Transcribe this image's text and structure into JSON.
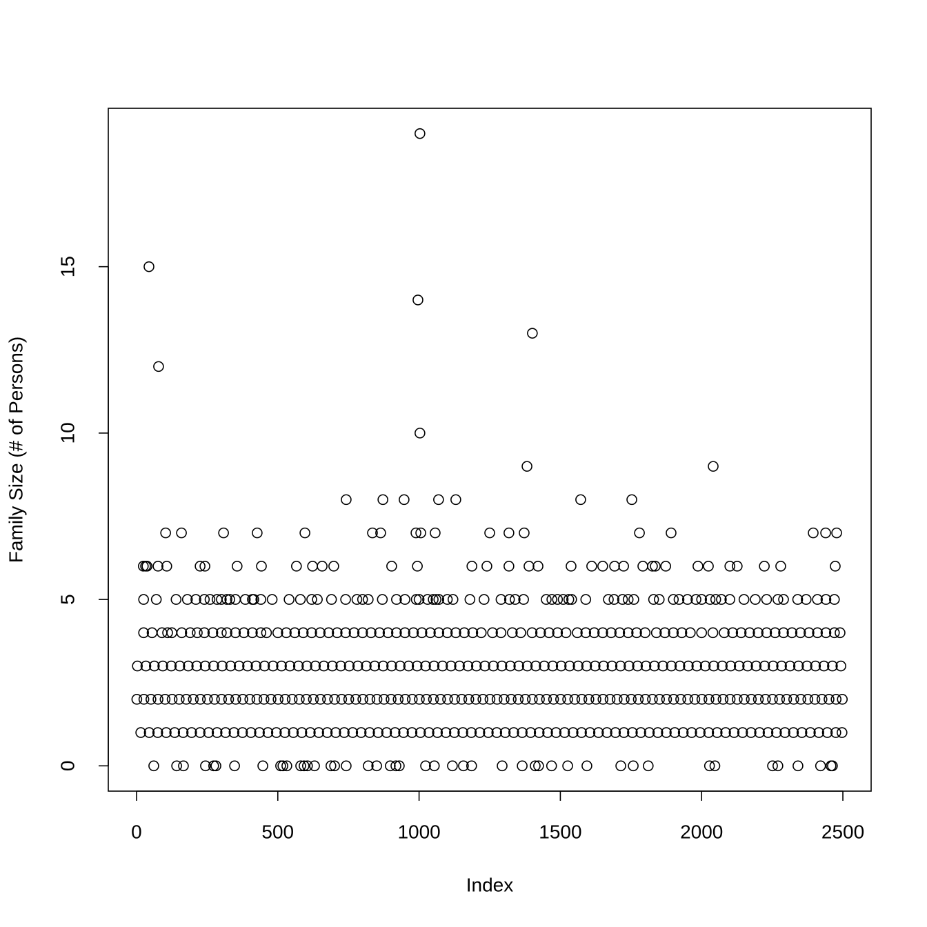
{
  "chart_data": {
    "type": "scatter",
    "x_label": "Index",
    "y_label": "Family Size (# of Persons)",
    "xlim": [
      -100,
      2600
    ],
    "ylim": [
      -0.76,
      19.76
    ],
    "xticks": [
      0,
      500,
      1000,
      1500,
      2000,
      2500
    ],
    "yticks": [
      0,
      5,
      10,
      15
    ],
    "color": "#000000",
    "groups": [
      {
        "y": 0,
        "x": [
          61,
          142,
          166,
          244,
          273,
          281,
          347,
          447,
          510,
          518,
          532,
          581,
          593,
          605,
          630,
          688,
          701,
          742,
          820,
          850,
          898,
          918,
          930,
          1023,
          1054,
          1118,
          1157,
          1186,
          1294,
          1365,
          1411,
          1423,
          1469,
          1526,
          1594,
          1714,
          1758,
          1811,
          2028,
          2047,
          2251,
          2270,
          2341,
          2421,
          2458,
          2463
        ]
      },
      {
        "y": 1,
        "x": [
          15,
          45,
          75,
          105,
          135,
          165,
          195,
          225,
          255,
          285,
          315,
          345,
          375,
          405,
          435,
          465,
          495,
          525,
          555,
          585,
          615,
          645,
          675,
          705,
          735,
          765,
          795,
          825,
          855,
          885,
          915,
          945,
          975,
          1005,
          1035,
          1065,
          1095,
          1125,
          1155,
          1185,
          1215,
          1245,
          1275,
          1305,
          1335,
          1365,
          1395,
          1425,
          1455,
          1485,
          1515,
          1545,
          1575,
          1605,
          1635,
          1665,
          1695,
          1725,
          1755,
          1785,
          1815,
          1845,
          1875,
          1905,
          1935,
          1965,
          1995,
          2025,
          2055,
          2085,
          2115,
          2145,
          2175,
          2205,
          2235,
          2265,
          2295,
          2325,
          2355,
          2385,
          2415,
          2445,
          2475,
          2497
        ]
      },
      {
        "y": 2,
        "x": [
          1,
          26,
          51,
          76,
          101,
          126,
          151,
          176,
          201,
          226,
          251,
          276,
          301,
          326,
          351,
          376,
          401,
          426,
          451,
          476,
          501,
          526,
          551,
          576,
          601,
          626,
          651,
          676,
          701,
          726,
          751,
          776,
          801,
          826,
          851,
          876,
          901,
          926,
          951,
          976,
          1001,
          1026,
          1051,
          1076,
          1101,
          1126,
          1151,
          1176,
          1201,
          1226,
          1251,
          1276,
          1301,
          1326,
          1351,
          1376,
          1401,
          1426,
          1451,
          1476,
          1501,
          1526,
          1551,
          1576,
          1601,
          1626,
          1651,
          1676,
          1701,
          1726,
          1751,
          1776,
          1801,
          1826,
          1851,
          1876,
          1901,
          1926,
          1951,
          1976,
          2001,
          2026,
          2051,
          2076,
          2101,
          2126,
          2151,
          2176,
          2201,
          2226,
          2251,
          2276,
          2301,
          2326,
          2351,
          2376,
          2401,
          2426,
          2451,
          2476,
          2498
        ]
      },
      {
        "y": 3,
        "x": [
          3,
          33,
          63,
          93,
          123,
          153,
          183,
          213,
          243,
          273,
          303,
          333,
          363,
          393,
          423,
          453,
          483,
          513,
          543,
          573,
          603,
          633,
          663,
          693,
          723,
          753,
          783,
          813,
          843,
          873,
          903,
          933,
          963,
          993,
          1023,
          1053,
          1083,
          1113,
          1143,
          1173,
          1203,
          1233,
          1263,
          1293,
          1323,
          1353,
          1383,
          1413,
          1443,
          1473,
          1503,
          1533,
          1563,
          1593,
          1623,
          1653,
          1683,
          1713,
          1743,
          1773,
          1803,
          1833,
          1863,
          1893,
          1923,
          1953,
          1983,
          2013,
          2043,
          2073,
          2103,
          2133,
          2163,
          2193,
          2223,
          2253,
          2283,
          2313,
          2343,
          2373,
          2403,
          2433,
          2463,
          2493
        ]
      },
      {
        "y": 4,
        "x": [
          25,
          55,
          90,
          110,
          125,
          160,
          190,
          215,
          240,
          270,
          300,
          320,
          350,
          380,
          410,
          440,
          460,
          500,
          530,
          560,
          590,
          620,
          650,
          680,
          710,
          740,
          770,
          800,
          830,
          860,
          890,
          920,
          950,
          980,
          1010,
          1040,
          1070,
          1100,
          1130,
          1160,
          1190,
          1220,
          1260,
          1290,
          1330,
          1360,
          1400,
          1430,
          1460,
          1490,
          1520,
          1560,
          1590,
          1620,
          1650,
          1680,
          1710,
          1740,
          1770,
          1800,
          1840,
          1870,
          1900,
          1930,
          1960,
          2000,
          2040,
          2080,
          2110,
          2140,
          2170,
          2200,
          2230,
          2260,
          2290,
          2320,
          2350,
          2380,
          2410,
          2440,
          2470,
          2490
        ]
      },
      {
        "y": 5,
        "x": [
          25,
          70,
          140,
          180,
          210,
          240,
          260,
          285,
          300,
          320,
          330,
          350,
          385,
          410,
          415,
          440,
          480,
          540,
          580,
          620,
          640,
          690,
          740,
          780,
          800,
          820,
          870,
          920,
          950,
          990,
          1000,
          1030,
          1050,
          1060,
          1070,
          1100,
          1120,
          1180,
          1230,
          1290,
          1320,
          1340,
          1370,
          1450,
          1470,
          1490,
          1510,
          1530,
          1540,
          1590,
          1670,
          1690,
          1720,
          1740,
          1760,
          1830,
          1850,
          1900,
          1920,
          1950,
          1980,
          2000,
          2030,
          2050,
          2070,
          2100,
          2150,
          2190,
          2230,
          2270,
          2290,
          2340,
          2370,
          2410,
          2440,
          2470
        ]
      },
      {
        "y": 6,
        "x": [
          24,
          32,
          37,
          76,
          107,
          225,
          242,
          356,
          442,
          566,
          623,
          657,
          698,
          903,
          994,
          1187,
          1240,
          1318,
          1389,
          1421,
          1538,
          1611,
          1650,
          1692,
          1724,
          1792,
          1826,
          1836,
          1873,
          1987,
          2024,
          2100,
          2126,
          2222,
          2280,
          2473
        ]
      },
      {
        "y": 7,
        "x": [
          103,
          159,
          308,
          427,
          596,
          835,
          864,
          989,
          1006,
          1057,
          1250,
          1318,
          1372,
          1780,
          1892,
          2395,
          2439,
          2478
        ]
      },
      {
        "y": 8,
        "x": [
          742,
          872,
          947,
          1069,
          1130,
          1572,
          1753
        ]
      },
      {
        "y": 9,
        "x": [
          1382,
          2041
        ]
      },
      {
        "y": 10,
        "x": [
          1003
        ]
      },
      {
        "y": 12,
        "x": [
          78
        ]
      },
      {
        "y": 13,
        "x": [
          1401
        ]
      },
      {
        "y": 14,
        "x": [
          996
        ]
      },
      {
        "y": 15,
        "x": [
          44
        ]
      },
      {
        "y": 19,
        "x": [
          1003
        ]
      }
    ]
  }
}
